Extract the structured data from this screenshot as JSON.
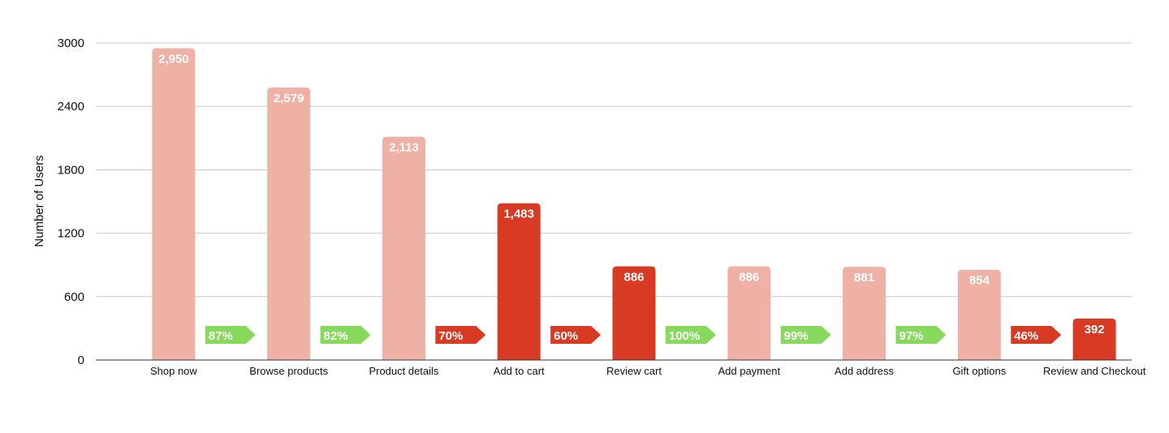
{
  "chart_data": {
    "type": "bar",
    "ylabel": "Number of Users",
    "xlabel": "",
    "title": "",
    "ylim": [
      0,
      3000
    ],
    "yticks": [
      0,
      600,
      1200,
      1800,
      2400,
      3000
    ],
    "grid": true,
    "categories": [
      "Shop now",
      "Browse products",
      "Product details",
      "Add to cart",
      "Review cart",
      "Add payment",
      "Add address",
      "Gift options",
      "Review and Checkout"
    ],
    "values": [
      2950,
      2579,
      2113,
      1483,
      886,
      886,
      881,
      854,
      392
    ],
    "value_labels": [
      "2,950",
      "2,579",
      "2,113",
      "1,483",
      "886",
      "886",
      "881",
      "854",
      "392"
    ],
    "highlighted": [
      false,
      false,
      false,
      true,
      true,
      false,
      false,
      false,
      true
    ],
    "conversion_rates": [
      {
        "label": "87%",
        "status": "good"
      },
      {
        "label": "82%",
        "status": "good"
      },
      {
        "label": "70%",
        "status": "bad"
      },
      {
        "label": "60%",
        "status": "bad"
      },
      {
        "label": "100%",
        "status": "good"
      },
      {
        "label": "99%",
        "status": "good"
      },
      {
        "label": "97%",
        "status": "good"
      },
      {
        "label": "46%",
        "status": "bad"
      }
    ],
    "colors": {
      "bar": "#efb1a6",
      "bar_highlight": "#d93a24",
      "arrow_good": "#86d95b",
      "arrow_bad": "#d93a24",
      "grid": "#c8c8c8",
      "axis": "#333333"
    }
  }
}
